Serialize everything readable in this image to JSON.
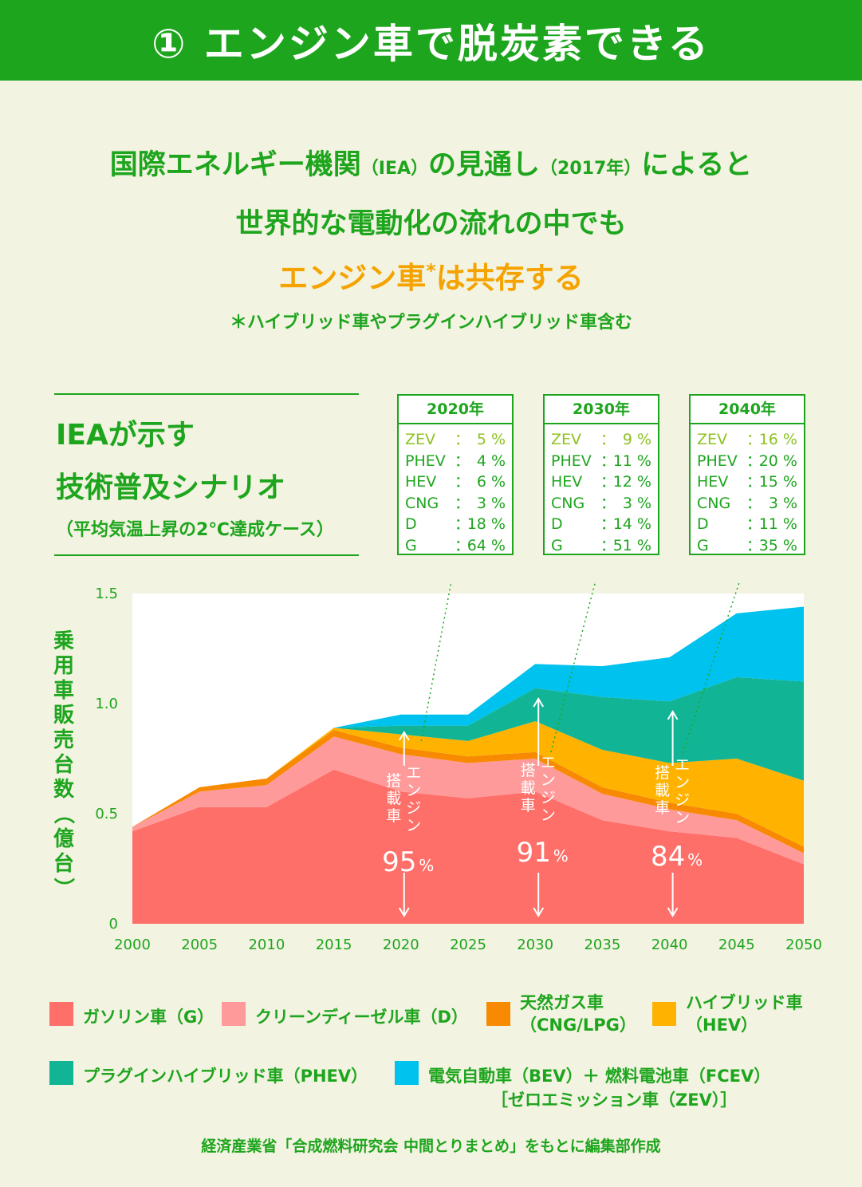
{
  "header": {
    "title": "① エンジン車で脱炭素できる"
  },
  "lead": {
    "line1_a": "国際エネルギー機関",
    "line1_b": "（IEA）",
    "line1_c": "の見通し",
    "line1_d": "（2017年）",
    "line1_e": "によると",
    "line2": "世界的な電動化の流れの中でも",
    "line3_a": "エンジン車",
    "line3_star": "*",
    "line3_b": "は共存する",
    "note": "＊ハイブリッド車やプラグインハイブリッド車含む"
  },
  "side": {
    "title1": "IEAが示す",
    "title2": "技術普及シナリオ",
    "subtitle": "（平均気温上昇の2℃達成ケース）"
  },
  "scenarios": [
    {
      "year": "2020年",
      "rows": [
        {
          "key": "ZEV",
          "val": "5 %"
        },
        {
          "key": "PHEV",
          "val": "4 %"
        },
        {
          "key": "HEV",
          "val": "6 %"
        },
        {
          "key": "CNG",
          "val": "3 %"
        },
        {
          "key": "D",
          "val": "18 %"
        },
        {
          "key": "G",
          "val": "64 %"
        }
      ]
    },
    {
      "year": "2030年",
      "rows": [
        {
          "key": "ZEV",
          "val": "9 %"
        },
        {
          "key": "PHEV",
          "val": "11 %"
        },
        {
          "key": "HEV",
          "val": "12 %"
        },
        {
          "key": "CNG",
          "val": "3 %"
        },
        {
          "key": "D",
          "val": "14 %"
        },
        {
          "key": "G",
          "val": "51 %"
        }
      ]
    },
    {
      "year": "2040年",
      "rows": [
        {
          "key": "ZEV",
          "val": "16 %"
        },
        {
          "key": "PHEV",
          "val": "20 %"
        },
        {
          "key": "HEV",
          "val": "15 %"
        },
        {
          "key": "CNG",
          "val": "3 %"
        },
        {
          "key": "D",
          "val": "11 %"
        },
        {
          "key": "G",
          "val": "35 %"
        }
      ]
    }
  ],
  "chart_data": {
    "type": "area",
    "stacked": true,
    "ylabel": "乗用車販売台数（億台）",
    "x": [
      2000,
      2005,
      2010,
      2015,
      2020,
      2025,
      2030,
      2035,
      2040,
      2045,
      2050
    ],
    "x_tick_labels": [
      "2000",
      "2005",
      "2010",
      "2015",
      "2020",
      "2025",
      "2030",
      "2035",
      "2040",
      "2045",
      "2050"
    ],
    "y_ticks": [
      0,
      0.5,
      1.0,
      1.5
    ],
    "y_tick_labels": [
      "0",
      "0.5",
      "1.0",
      "1.5"
    ],
    "ylim": [
      0,
      1.5
    ],
    "series": [
      {
        "name": "ガソリン車（G）",
        "key": "G",
        "color": "#ff6f69",
        "values": [
          0.42,
          0.53,
          0.53,
          0.7,
          0.6,
          0.57,
          0.6,
          0.47,
          0.42,
          0.39,
          0.27
        ]
      },
      {
        "name": "クリーンディーゼル車（D）",
        "key": "D",
        "color": "#ff9a9a",
        "values": [
          0.02,
          0.07,
          0.1,
          0.15,
          0.17,
          0.16,
          0.15,
          0.12,
          0.1,
          0.08,
          0.05
        ]
      },
      {
        "name": "天然ガス車（CNG/LPG）",
        "key": "CNG",
        "color": "#f78a00",
        "values": [
          0.0,
          0.02,
          0.03,
          0.03,
          0.03,
          0.03,
          0.03,
          0.03,
          0.03,
          0.03,
          0.03
        ]
      },
      {
        "name": "ハイブリッド車（HEV）",
        "key": "HEV",
        "color": "#ffb300",
        "values": [
          0.0,
          0.0,
          0.0,
          0.01,
          0.06,
          0.07,
          0.14,
          0.17,
          0.18,
          0.25,
          0.3
        ]
      },
      {
        "name": "プラグインハイブリッド車（PHEV）",
        "key": "PHEV",
        "color": "#12b496",
        "values": [
          0.0,
          0.0,
          0.0,
          0.0,
          0.04,
          0.07,
          0.15,
          0.24,
          0.28,
          0.37,
          0.45
        ]
      },
      {
        "name": "電気自動車（BEV）＋燃料電池車（FCEV）",
        "key": "ZEV",
        "color": "#00c2ee",
        "values": [
          0.0,
          0.0,
          0.0,
          0.0,
          0.05,
          0.05,
          0.11,
          0.14,
          0.2,
          0.29,
          0.34
        ]
      }
    ],
    "annotations": [
      {
        "x": 2020,
        "label": "エンジン搭載車",
        "value": "95",
        "unit": "%"
      },
      {
        "x": 2030,
        "label": "エンジン搭載車",
        "value": "91",
        "unit": "%"
      },
      {
        "x": 2040,
        "label": "エンジン搭載車",
        "value": "84",
        "unit": "%"
      }
    ]
  },
  "legend": {
    "g": "ガソリン車（G）",
    "d": "クリーンディーゼル車（D）",
    "cng_1": "天然ガス車",
    "cng_2": "（CNG/LPG）",
    "hev_1": "ハイブリッド車",
    "hev_2": "（HEV）",
    "phev": "プラグインハイブリッド車（PHEV）",
    "zev_1": "電気自動車（BEV）＋ 燃料電池車（FCEV）",
    "zev_2": "［ゼロエミッション車（ZEV）］"
  },
  "source": "経済産業省「合成燃料研究会 中間とりまとめ」をもとに編集部作成"
}
